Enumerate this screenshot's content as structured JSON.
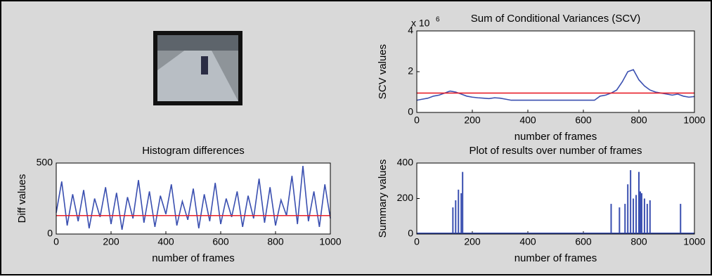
{
  "chart_data": [
    {
      "type": "line",
      "title": "Sum of Conditional Variances (SCV)",
      "x_label": "number of frames",
      "y_label": "SCV values",
      "y_multiplier": "x 10",
      "y_multiplier_exp": "6",
      "xlim": [
        0,
        1000
      ],
      "xticks": [
        0,
        200,
        400,
        600,
        800,
        1000
      ],
      "ylim": [
        0,
        4
      ],
      "yticks": [
        0,
        2,
        4
      ],
      "series": [
        {
          "color": "#3a4fb0",
          "x": [
            0,
            20,
            40,
            60,
            80,
            100,
            120,
            140,
            160,
            180,
            200,
            220,
            240,
            260,
            280,
            300,
            320,
            340,
            360,
            380,
            400,
            420,
            440,
            460,
            480,
            500,
            520,
            540,
            560,
            580,
            600,
            620,
            640,
            660,
            680,
            700,
            720,
            740,
            760,
            780,
            800,
            820,
            840,
            860,
            880,
            900,
            920,
            940,
            960,
            980,
            1000
          ],
          "values": [
            0.6,
            0.65,
            0.7,
            0.8,
            0.85,
            0.95,
            1.05,
            1.0,
            0.9,
            0.8,
            0.75,
            0.72,
            0.7,
            0.68,
            0.72,
            0.7,
            0.65,
            0.6,
            0.6,
            0.6,
            0.6,
            0.6,
            0.6,
            0.6,
            0.6,
            0.6,
            0.6,
            0.6,
            0.6,
            0.6,
            0.6,
            0.6,
            0.6,
            0.8,
            0.85,
            0.95,
            1.1,
            1.5,
            2.0,
            2.1,
            1.6,
            1.3,
            1.1,
            1.0,
            0.95,
            0.9,
            0.85,
            0.9,
            0.8,
            0.75,
            0.78
          ]
        },
        {
          "color": "#e8202a",
          "x": [
            0,
            1000
          ],
          "values": [
            0.95,
            0.95
          ]
        }
      ]
    },
    {
      "type": "line",
      "title": "Histogram differences",
      "x_label": "number of frames",
      "y_label": "Diff values",
      "xlim": [
        0,
        1000
      ],
      "xticks": [
        0,
        200,
        400,
        600,
        800,
        1000
      ],
      "ylim": [
        0,
        500
      ],
      "yticks": [
        0,
        500
      ],
      "series": [
        {
          "color": "#3a4fb0",
          "x": [
            0,
            20,
            40,
            60,
            80,
            100,
            120,
            140,
            160,
            180,
            200,
            220,
            240,
            260,
            280,
            300,
            320,
            340,
            360,
            380,
            400,
            420,
            440,
            460,
            480,
            500,
            520,
            540,
            560,
            580,
            600,
            620,
            640,
            660,
            680,
            700,
            720,
            740,
            760,
            780,
            800,
            820,
            840,
            860,
            880,
            900,
            920,
            940,
            960,
            980,
            1000
          ],
          "values": [
            150,
            370,
            60,
            280,
            90,
            310,
            40,
            250,
            120,
            330,
            70,
            290,
            30,
            260,
            110,
            380,
            80,
            300,
            50,
            270,
            140,
            350,
            60,
            230,
            100,
            320,
            40,
            280,
            90,
            360,
            70,
            250,
            120,
            300,
            50,
            270,
            110,
            390,
            80,
            330,
            60,
            240,
            130,
            410,
            70,
            480,
            90,
            300,
            50,
            350,
            110
          ]
        },
        {
          "color": "#e8202a",
          "x": [
            0,
            1000
          ],
          "values": [
            130,
            130
          ]
        }
      ]
    },
    {
      "type": "stem",
      "title": "Plot of results over number of frames",
      "x_label": "number of frames",
      "y_label": "Summary values",
      "xlim": [
        0,
        1000
      ],
      "xticks": [
        0,
        200,
        400,
        600,
        800,
        1000
      ],
      "ylim": [
        0,
        400
      ],
      "yticks": [
        0,
        200,
        400
      ],
      "series": [
        {
          "color": "#3a4fb0",
          "x": [
            130,
            140,
            150,
            160,
            165,
            700,
            730,
            750,
            760,
            770,
            780,
            790,
            800,
            805,
            810,
            820,
            830,
            840,
            950
          ],
          "values": [
            150,
            190,
            250,
            230,
            350,
            170,
            150,
            170,
            280,
            360,
            200,
            220,
            350,
            240,
            230,
            200,
            170,
            190,
            170
          ]
        }
      ]
    }
  ]
}
